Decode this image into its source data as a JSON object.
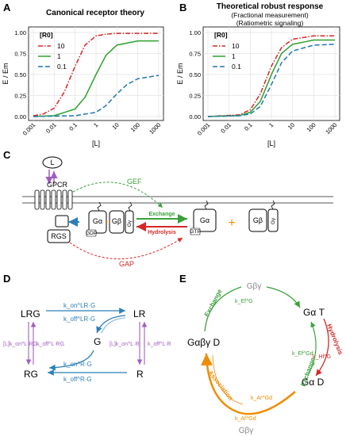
{
  "panels": {
    "A": {
      "label": "A",
      "title": "Canonical receptor theory",
      "ylabel": "E / Em",
      "xlabel": "[L]",
      "legend_title": "[R0]"
    },
    "B": {
      "label": "B",
      "title": "Theoretical robust response",
      "subtitle1": "(Fractional measurement)",
      "subtitle2": "(Ratiometric signaling)",
      "ylabel": "E / Em",
      "xlabel": "[L]",
      "legend_title": "[R0]"
    },
    "C": {
      "label": "C",
      "ligand": "L",
      "gpcr": "GPCR",
      "rgs": "RGS",
      "gef": "GEF",
      "gap": "GAP",
      "exchange": "Exchange",
      "hydrolysis": "Hydrolysis",
      "galpha": "Gα",
      "gbeta": "Gβ",
      "ggamma": "Gγ",
      "gdp": "GDP",
      "gtp": "GTP",
      "plus": "+"
    },
    "D": {
      "label": "D",
      "nodes": {
        "LRG": "LRG",
        "LR": "LR",
        "G": "G",
        "RG": "RG",
        "R": "R"
      },
      "rates": {
        "kon_lrg": "k_on^LR·G",
        "koff_lrg": "k_off^LR·G",
        "kon_rg": "k_on^R·G",
        "koff_rg": "k_off^R·G",
        "kon_l_rg": "[L]k_on^L·RG",
        "koff_l_rg": "k_off^L·RG",
        "kon_l_r": "[L]k_on^L·R",
        "koff_l_r": "k_off^L·R"
      }
    },
    "E": {
      "label": "E",
      "g_by_top": "Gβγ",
      "g_a_t": "Gα T",
      "g_aby_d": "Gαβγ D",
      "g_a_d": "Gα D",
      "g_by_bottom": "Gβγ",
      "exchange_top": "Exchange",
      "hydrolysis": "Hydrolysis",
      "exchange_right": "Exchange",
      "association": "Association",
      "k_ef_c": "k_Ef^G",
      "k_hf_g": "k_Hf^G",
      "k_ef_gd": "k_Ef^Gd",
      "k_ar_gd": "k_Ar^Gd",
      "k_af_gd": "k_Af^Gd"
    }
  },
  "legend": [
    {
      "label": "10",
      "color": "#d62728",
      "dash": "dashdot"
    },
    {
      "label": "1",
      "color": "#2ca02c",
      "dash": "solid"
    },
    {
      "label": "0.1",
      "color": "#1f77b4",
      "dash": "dashed"
    }
  ],
  "chart_data": [
    {
      "type": "line",
      "title": "Canonical receptor theory",
      "xlabel": "[L]",
      "ylabel": "E / Em",
      "xscale": "log",
      "xlim": [
        0.001,
        1000
      ],
      "ylim": [
        0,
        1
      ],
      "xticks": [
        "0.001",
        "0.01",
        "0.1",
        "1",
        "10",
        "100",
        "1000"
      ],
      "yticks": [
        "0.00",
        "0.25",
        "0.50",
        "0.75",
        "1.00"
      ],
      "grid": true,
      "legend_position": "top-left",
      "series": [
        {
          "name": "10",
          "x": [
            0.001,
            0.003,
            0.01,
            0.03,
            0.1,
            0.3,
            1,
            3,
            10,
            100,
            1000
          ],
          "y": [
            0.01,
            0.03,
            0.1,
            0.29,
            0.6,
            0.85,
            0.96,
            0.98,
            0.99,
            0.99,
            0.99
          ]
        },
        {
          "name": "1",
          "x": [
            0.001,
            0.01,
            0.1,
            0.3,
            1,
            3,
            10,
            100,
            1000
          ],
          "y": [
            0.0,
            0.01,
            0.09,
            0.23,
            0.5,
            0.73,
            0.85,
            0.9,
            0.9
          ]
        },
        {
          "name": "0.1",
          "x": [
            0.001,
            0.1,
            1,
            3,
            10,
            30,
            100,
            1000
          ],
          "y": [
            0.0,
            0.01,
            0.05,
            0.13,
            0.27,
            0.38,
            0.45,
            0.49
          ]
        }
      ]
    },
    {
      "type": "line",
      "title": "Theoretical robust response",
      "xlabel": "[L]",
      "ylabel": "E / Em",
      "xscale": "log",
      "xlim": [
        0.001,
        1000
      ],
      "ylim": [
        0,
        1
      ],
      "xticks": [
        "0.001",
        "0.01",
        "0.1",
        "1",
        "10",
        "100",
        "1000"
      ],
      "yticks": [
        "0.00",
        "0.25",
        "0.50",
        "0.75",
        "1.00"
      ],
      "grid": true,
      "legend_position": "top-left",
      "series": [
        {
          "name": "10",
          "x": [
            0.001,
            0.03,
            0.1,
            0.3,
            1,
            3,
            10,
            100,
            1000
          ],
          "y": [
            0.0,
            0.02,
            0.08,
            0.27,
            0.6,
            0.82,
            0.92,
            0.96,
            0.96
          ]
        },
        {
          "name": "1",
          "x": [
            0.001,
            0.03,
            0.1,
            0.3,
            1,
            3,
            10,
            100,
            1000
          ],
          "y": [
            0.0,
            0.01,
            0.05,
            0.18,
            0.5,
            0.75,
            0.86,
            0.91,
            0.91
          ]
        },
        {
          "name": "0.1",
          "x": [
            0.001,
            0.03,
            0.1,
            0.3,
            1,
            3,
            10,
            100,
            1000
          ],
          "y": [
            0.0,
            0.01,
            0.03,
            0.12,
            0.38,
            0.64,
            0.78,
            0.85,
            0.86
          ]
        }
      ]
    }
  ]
}
